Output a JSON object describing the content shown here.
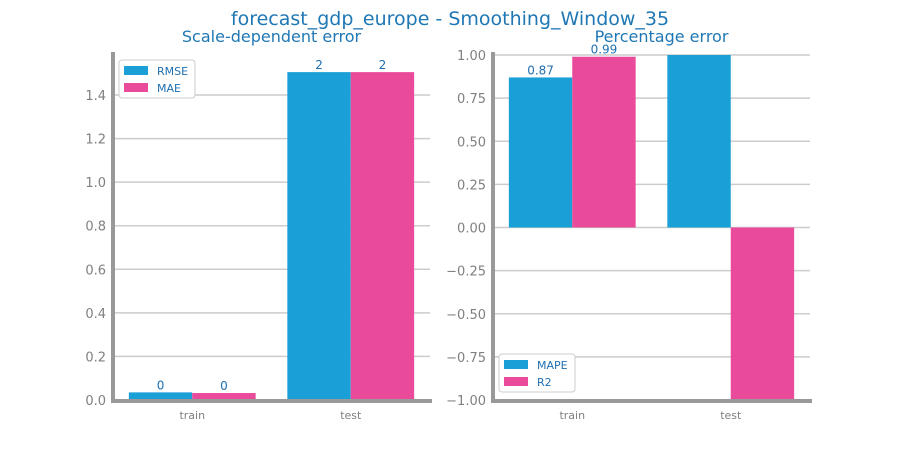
{
  "figure": {
    "title": "forecast_gdp_europe - Smoothing_Window_35"
  },
  "chart_data": [
    {
      "type": "bar",
      "title": "Scale-dependent error",
      "xlabel": "",
      "ylabel": "",
      "categories": [
        "train",
        "test"
      ],
      "series": [
        {
          "name": "RMSE",
          "values": [
            0.035,
            1.505
          ],
          "labels": [
            "0",
            "2"
          ]
        },
        {
          "name": "MAE",
          "values": [
            0.032,
            1.505
          ],
          "labels": [
            "0",
            "2"
          ]
        }
      ],
      "ylim": [
        0,
        1.58
      ],
      "yticks": [
        0.0,
        0.2,
        0.4,
        0.6,
        0.8,
        1.0,
        1.2,
        1.4
      ],
      "ytick_labels": [
        "0.0",
        "0.2",
        "0.4",
        "0.6",
        "0.8",
        "1.0",
        "1.2",
        "1.4"
      ],
      "grid": true,
      "legend": "top-left"
    },
    {
      "type": "bar",
      "title": "Percentage error",
      "xlabel": "",
      "ylabel": "",
      "categories": [
        "train",
        "test"
      ],
      "series": [
        {
          "name": "MAPE",
          "values": [
            0.87,
            1.0
          ],
          "labels": [
            "0.87",
            ""
          ]
        },
        {
          "name": "R2",
          "values": [
            0.99,
            -1.0
          ],
          "labels": [
            "0.99",
            ""
          ]
        }
      ],
      "ylim": [
        -1.0,
        1.0
      ],
      "yticks": [
        -1.0,
        -0.75,
        -0.5,
        -0.25,
        0.0,
        0.25,
        0.5,
        0.75,
        1.0
      ],
      "ytick_labels": [
        "−1.00",
        "−0.75",
        "−0.50",
        "−0.25",
        "0.00",
        "0.25",
        "0.50",
        "0.75",
        "1.00"
      ],
      "grid": true,
      "legend": "bottom-left"
    }
  ],
  "colors": {
    "series1": "#1a9fd6",
    "series2": "#ea4a9a",
    "grid": "#cccccc",
    "axis": "#999999",
    "title": "#1f77b4"
  }
}
